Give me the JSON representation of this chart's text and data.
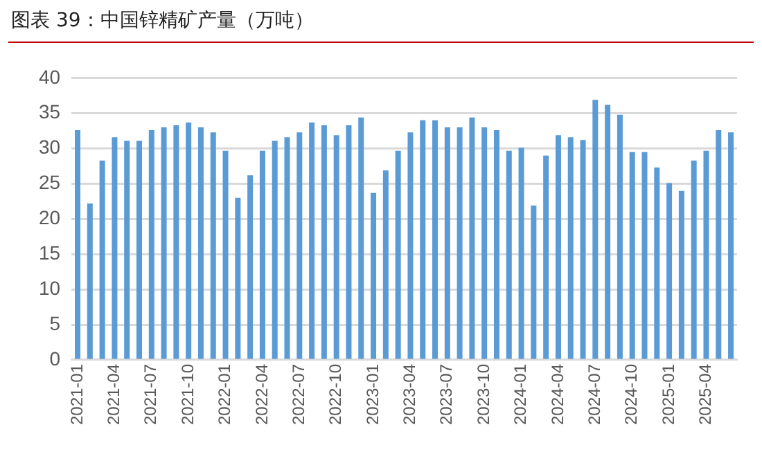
{
  "chart_data": {
    "type": "bar",
    "title": "图表 39：中国锌精矿产量（万吨）",
    "categories": [
      "2021-01",
      null,
      null,
      "2021-04",
      null,
      null,
      "2021-07",
      null,
      null,
      "2021-10",
      null,
      null,
      "2022-01",
      null,
      null,
      "2022-04",
      null,
      null,
      "2022-07",
      null,
      null,
      "2022-10",
      null,
      null,
      "2023-01",
      null,
      null,
      "2023-04",
      null,
      null,
      "2023-07",
      null,
      null,
      "2023-10",
      null,
      null,
      "2024-01",
      null,
      null,
      "2024-04",
      null,
      null,
      "2024-07",
      null,
      null,
      "2024-10",
      null,
      null,
      "2025-01",
      null,
      null,
      "2025-04",
      null,
      null
    ],
    "values": [
      32.6,
      22.2,
      28.3,
      31.6,
      31.1,
      31.1,
      32.6,
      33.0,
      33.3,
      33.7,
      33.0,
      32.3,
      29.7,
      23.0,
      26.2,
      29.7,
      31.1,
      31.6,
      32.3,
      33.7,
      33.3,
      31.9,
      33.3,
      34.4,
      23.7,
      26.9,
      29.7,
      32.3,
      34.0,
      34.0,
      33.0,
      33.0,
      34.4,
      33.0,
      32.6,
      29.7,
      30.1,
      21.9,
      29.0,
      31.9,
      31.6,
      31.2,
      36.9,
      36.2,
      34.8,
      29.5,
      29.5,
      27.3,
      25.1,
      24.0,
      28.3,
      29.7,
      32.6,
      32.3
    ],
    "color": "#5b9bd5",
    "ylim": [
      0,
      40
    ],
    "yticks": [
      0,
      5,
      10,
      15,
      20,
      25,
      30,
      35,
      40
    ],
    "grid": "y",
    "legend": false
  }
}
